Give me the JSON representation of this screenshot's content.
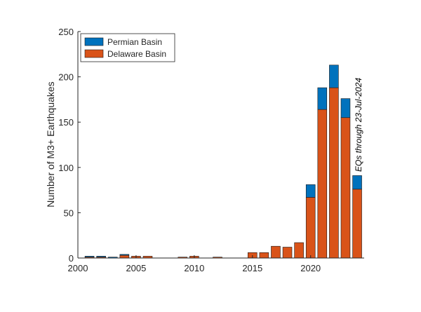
{
  "chart_data": {
    "type": "bar",
    "stacked": true,
    "x": [
      2001,
      2002,
      2003,
      2004,
      2005,
      2006,
      2007,
      2008,
      2009,
      2010,
      2011,
      2012,
      2013,
      2014,
      2015,
      2016,
      2017,
      2018,
      2019,
      2020,
      2021,
      2022,
      2023,
      2024
    ],
    "series": [
      {
        "name": "Delaware Basin",
        "color": "#D95319",
        "values": [
          1,
          1,
          0,
          3,
          2,
          2,
          0,
          0,
          1,
          2,
          0,
          1,
          0,
          0,
          6,
          6,
          13,
          12,
          17,
          67,
          164,
          188,
          155,
          76
        ]
      },
      {
        "name": "Permian Basin",
        "color": "#0072BD",
        "values": [
          1,
          1,
          1,
          1,
          0,
          0,
          0,
          0,
          0,
          0,
          0,
          0,
          0,
          0,
          0,
          0,
          0,
          0,
          0,
          14,
          24,
          25,
          21,
          15
        ]
      }
    ],
    "legend": [
      "Permian Basin",
      "Delaware Basin"
    ],
    "legend_position": "top-left",
    "xlim": [
      2000,
      2024.6
    ],
    "ylim": [
      0,
      250
    ],
    "xticks": [
      "2000",
      "2005",
      "2010",
      "2015",
      "2020"
    ],
    "yticks": [
      "0",
      "50",
      "100",
      "150",
      "200",
      "250"
    ],
    "xlabel": "",
    "ylabel": "Number of M3+ Earthquakes",
    "annotation": "EQs through 23-Jul-2024",
    "grid": false
  }
}
